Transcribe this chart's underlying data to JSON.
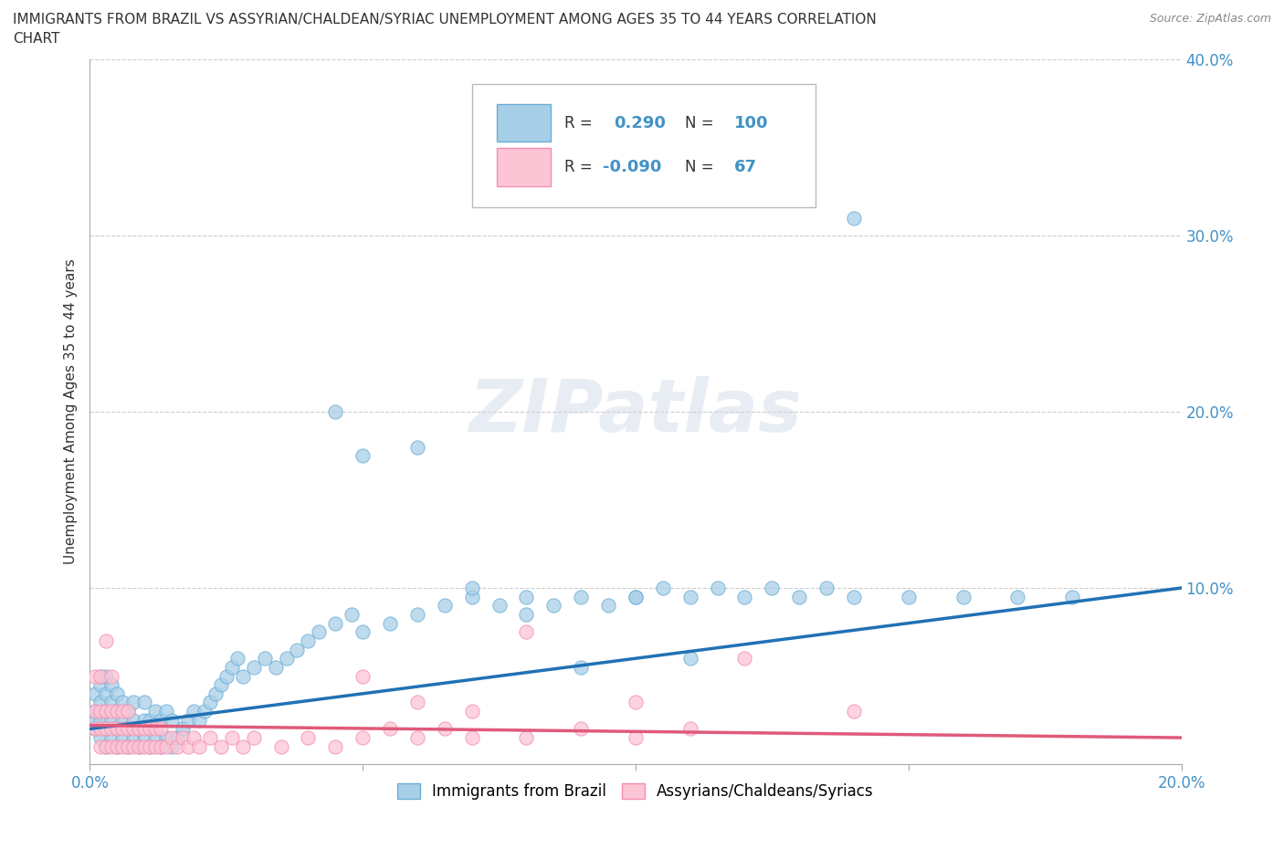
{
  "title_line1": "IMMIGRANTS FROM BRAZIL VS ASSYRIAN/CHALDEAN/SYRIAC UNEMPLOYMENT AMONG AGES 35 TO 44 YEARS CORRELATION",
  "title_line2": "CHART",
  "source": "Source: ZipAtlas.com",
  "ylabel": "Unemployment Among Ages 35 to 44 years",
  "xlim": [
    0,
    0.2
  ],
  "ylim": [
    0,
    0.4
  ],
  "blue_color": "#6baed6",
  "blue_face": "#a8cfe8",
  "pink_color": "#f48fb1",
  "pink_face": "#fcc5d5",
  "blue_R": 0.29,
  "blue_N": 100,
  "pink_R": -0.09,
  "pink_N": 67,
  "blue_line_color": "#2171b5",
  "pink_line_color": "#e05a7a",
  "watermark": "ZIPatlas",
  "legend1": "Immigrants from Brazil",
  "legend2": "Assyrians/Chaldeans/Syriacs",
  "blue_scatter_x": [
    0.001,
    0.001,
    0.001,
    0.001,
    0.002,
    0.002,
    0.002,
    0.002,
    0.002,
    0.003,
    0.003,
    0.003,
    0.003,
    0.003,
    0.004,
    0.004,
    0.004,
    0.004,
    0.005,
    0.005,
    0.005,
    0.005,
    0.006,
    0.006,
    0.006,
    0.007,
    0.007,
    0.007,
    0.008,
    0.008,
    0.008,
    0.009,
    0.009,
    0.01,
    0.01,
    0.01,
    0.011,
    0.011,
    0.012,
    0.012,
    0.013,
    0.013,
    0.014,
    0.014,
    0.015,
    0.015,
    0.016,
    0.017,
    0.018,
    0.019,
    0.02,
    0.021,
    0.022,
    0.023,
    0.024,
    0.025,
    0.026,
    0.027,
    0.028,
    0.03,
    0.032,
    0.034,
    0.036,
    0.038,
    0.04,
    0.042,
    0.045,
    0.048,
    0.05,
    0.055,
    0.06,
    0.065,
    0.07,
    0.075,
    0.08,
    0.085,
    0.09,
    0.095,
    0.1,
    0.105,
    0.11,
    0.115,
    0.12,
    0.125,
    0.13,
    0.135,
    0.14,
    0.15,
    0.16,
    0.17,
    0.18,
    0.045,
    0.05,
    0.06,
    0.07,
    0.08,
    0.09,
    0.1,
    0.11,
    0.14
  ],
  "blue_scatter_y": [
    0.02,
    0.025,
    0.03,
    0.04,
    0.015,
    0.025,
    0.035,
    0.045,
    0.05,
    0.01,
    0.02,
    0.03,
    0.04,
    0.05,
    0.015,
    0.025,
    0.035,
    0.045,
    0.01,
    0.02,
    0.03,
    0.04,
    0.015,
    0.025,
    0.035,
    0.01,
    0.02,
    0.03,
    0.015,
    0.025,
    0.035,
    0.01,
    0.02,
    0.015,
    0.025,
    0.035,
    0.01,
    0.025,
    0.015,
    0.03,
    0.01,
    0.025,
    0.015,
    0.03,
    0.01,
    0.025,
    0.015,
    0.02,
    0.025,
    0.03,
    0.025,
    0.03,
    0.035,
    0.04,
    0.045,
    0.05,
    0.055,
    0.06,
    0.05,
    0.055,
    0.06,
    0.055,
    0.06,
    0.065,
    0.07,
    0.075,
    0.08,
    0.085,
    0.075,
    0.08,
    0.085,
    0.09,
    0.095,
    0.09,
    0.095,
    0.09,
    0.095,
    0.09,
    0.095,
    0.1,
    0.095,
    0.1,
    0.095,
    0.1,
    0.095,
    0.1,
    0.095,
    0.095,
    0.095,
    0.095,
    0.095,
    0.2,
    0.175,
    0.18,
    0.1,
    0.085,
    0.055,
    0.095,
    0.06,
    0.31
  ],
  "pink_scatter_x": [
    0.001,
    0.001,
    0.001,
    0.002,
    0.002,
    0.002,
    0.002,
    0.003,
    0.003,
    0.003,
    0.003,
    0.004,
    0.004,
    0.004,
    0.004,
    0.005,
    0.005,
    0.005,
    0.006,
    0.006,
    0.006,
    0.007,
    0.007,
    0.007,
    0.008,
    0.008,
    0.009,
    0.009,
    0.01,
    0.01,
    0.011,
    0.011,
    0.012,
    0.012,
    0.013,
    0.013,
    0.014,
    0.015,
    0.016,
    0.017,
    0.018,
    0.019,
    0.02,
    0.022,
    0.024,
    0.026,
    0.028,
    0.03,
    0.035,
    0.04,
    0.045,
    0.05,
    0.055,
    0.06,
    0.065,
    0.07,
    0.08,
    0.09,
    0.1,
    0.11,
    0.05,
    0.06,
    0.07,
    0.08,
    0.1,
    0.12,
    0.14
  ],
  "pink_scatter_y": [
    0.02,
    0.03,
    0.05,
    0.01,
    0.02,
    0.03,
    0.05,
    0.01,
    0.02,
    0.03,
    0.07,
    0.01,
    0.02,
    0.03,
    0.05,
    0.01,
    0.02,
    0.03,
    0.01,
    0.02,
    0.03,
    0.01,
    0.02,
    0.03,
    0.01,
    0.02,
    0.01,
    0.02,
    0.01,
    0.02,
    0.01,
    0.02,
    0.01,
    0.02,
    0.01,
    0.02,
    0.01,
    0.015,
    0.01,
    0.015,
    0.01,
    0.015,
    0.01,
    0.015,
    0.01,
    0.015,
    0.01,
    0.015,
    0.01,
    0.015,
    0.01,
    0.015,
    0.02,
    0.015,
    0.02,
    0.015,
    0.015,
    0.02,
    0.015,
    0.02,
    0.05,
    0.035,
    0.03,
    0.075,
    0.035,
    0.06,
    0.03
  ]
}
